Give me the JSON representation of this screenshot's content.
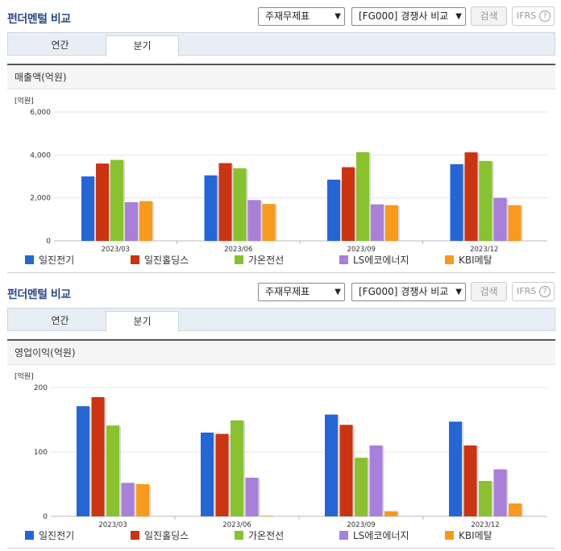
{
  "panels": [
    {
      "title": "펀더멘털 비교",
      "select_statement": "주재무제표",
      "select_compare": "[FG000] 경쟁사 비교",
      "search_label": "검색",
      "ifrs_label": "IFRS",
      "help_glyph": "?",
      "tabs": [
        {
          "label": "연간"
        },
        {
          "label": "분기"
        }
      ],
      "active_tab": 1,
      "chart_header": "매출액(억원)"
    },
    {
      "title": "펀더멘털 비교",
      "select_statement": "주재무제표",
      "select_compare": "[FG000] 경쟁사 비교",
      "search_label": "검색",
      "ifrs_label": "IFRS",
      "help_glyph": "?",
      "tabs": [
        {
          "label": "연간"
        },
        {
          "label": "분기"
        }
      ],
      "active_tab": 1,
      "chart_header": "영업이익(억원)"
    }
  ],
  "colors": {
    "일진전기": "#2466d6",
    "일진홀딩스": "#cc3311",
    "가온전선": "#88c22e",
    "LS에코에너지": "#a87fd9",
    "KBI메탈": "#f89a1c"
  },
  "chart_data": [
    {
      "type": "bar",
      "title": "",
      "unit_label": "[억원]",
      "categories": [
        "2023/03",
        "2023/06",
        "2023/09",
        "2023/12"
      ],
      "series": [
        {
          "name": "일진전기",
          "values": [
            3000,
            3050,
            2850,
            3570
          ]
        },
        {
          "name": "일진홀딩스",
          "values": [
            3600,
            3620,
            3430,
            4120
          ]
        },
        {
          "name": "가온전선",
          "values": [
            3770,
            3380,
            4130,
            3720
          ]
        },
        {
          "name": "LS에코에너지",
          "values": [
            1800,
            1900,
            1700,
            2000
          ]
        },
        {
          "name": "KBI메탈",
          "values": [
            1850,
            1720,
            1660,
            1660
          ]
        }
      ],
      "yticks": [
        "6,000",
        "4,000",
        "2,000",
        "0"
      ],
      "ylim": [
        0,
        6000
      ],
      "grid": true,
      "legend": "bottom"
    },
    {
      "type": "bar",
      "title": "",
      "unit_label": "[억원]",
      "categories": [
        "2023/03",
        "2023/06",
        "2023/09",
        "2023/12"
      ],
      "series": [
        {
          "name": "일진전기",
          "values": [
            171,
            130,
            158,
            147
          ]
        },
        {
          "name": "일진홀딩스",
          "values": [
            185,
            128,
            142,
            110
          ]
        },
        {
          "name": "가온전선",
          "values": [
            141,
            149,
            91,
            55
          ]
        },
        {
          "name": "LS에코에너지",
          "values": [
            52,
            60,
            110,
            73
          ]
        },
        {
          "name": "KBI메탈",
          "values": [
            50,
            1,
            8,
            20
          ]
        }
      ],
      "yticks": [
        "200",
        "100",
        "0"
      ],
      "ylim": [
        0,
        200
      ],
      "grid": true,
      "legend": "bottom"
    }
  ]
}
